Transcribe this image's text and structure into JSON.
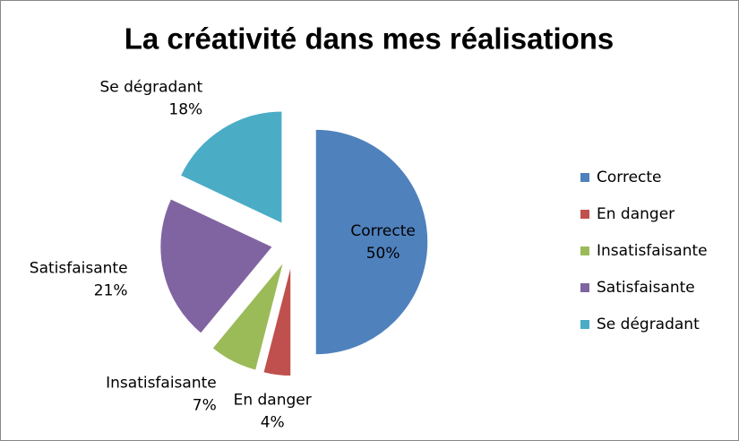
{
  "chart_data": {
    "type": "pie",
    "title": "La créativité dans mes réalisations",
    "categories": [
      "Correcte",
      "En danger",
      "Insatisfaisante",
      "Satisfaisante",
      "Se dégradant"
    ],
    "values": [
      50,
      4,
      7,
      21,
      18
    ],
    "value_labels": [
      "50%",
      "4%",
      "7%",
      "21%",
      "18%"
    ],
    "colors": [
      "#4f81bd",
      "#c0504d",
      "#9bbb59",
      "#8064a2",
      "#4bacc6"
    ],
    "legend": "right"
  }
}
